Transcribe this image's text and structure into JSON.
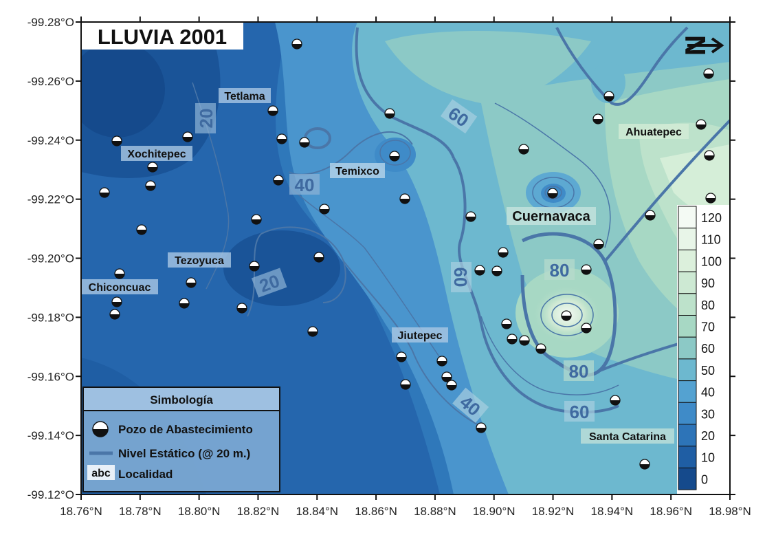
{
  "title": "LLUVIA 2001",
  "north_arrow": "N",
  "axes": {
    "y_ticks": [
      "-99.28°O",
      "-99.26°O",
      "-99.24°O",
      "-99.22°O",
      "-99.20°O",
      "-99.18°O",
      "-99.16°O",
      "-99.14°O",
      "-99.12°O"
    ],
    "x_ticks": [
      "18.76°N",
      "18.78°N",
      "18.80°N",
      "18.82°N",
      "18.84°N",
      "18.86°N",
      "18.88°N",
      "18.90°N",
      "18.92°N",
      "18.94°N",
      "18.96°N",
      "18.98°N"
    ]
  },
  "localities": [
    {
      "name": "Tetlama"
    },
    {
      "name": "Xochitepec"
    },
    {
      "name": "Temixco"
    },
    {
      "name": "Cuernavaca"
    },
    {
      "name": "Ahuatepec"
    },
    {
      "name": "Tezoyuca"
    },
    {
      "name": "Chiconcuac"
    },
    {
      "name": "Jiutepec"
    },
    {
      "name": "Santa Catarina"
    }
  ],
  "contour_labels": [
    "20",
    "40",
    "60",
    "20",
    "60",
    "80",
    "80",
    "40",
    "60"
  ],
  "legend": {
    "title": "Simbología",
    "items": [
      "Pozo de Abastecimiento",
      "Nivel Estático (@ 20 m.)",
      "Localidad"
    ],
    "abc": "abc"
  },
  "colorbar": {
    "values": [
      "120",
      "110",
      "100",
      "90",
      "80",
      "70",
      "60",
      "50",
      "40",
      "30",
      "20",
      "10",
      "0"
    ],
    "colors": [
      "#f4faf4",
      "#e8f5e8",
      "#dcf0dc",
      "#cde9d3",
      "#bde2cb",
      "#a7d8c4",
      "#8cc9c6",
      "#6db8cf",
      "#54a2d1",
      "#3f8bc8",
      "#2d74b8",
      "#1f5ea4",
      "#154a8c"
    ]
  },
  "map_colors": {
    "deep": "#1a5498",
    "mid": "#2f78ba",
    "light": "#5da9d2",
    "teal": "#83c8cc",
    "pale": "#c3e6cc",
    "contour": "#4a76a8"
  }
}
